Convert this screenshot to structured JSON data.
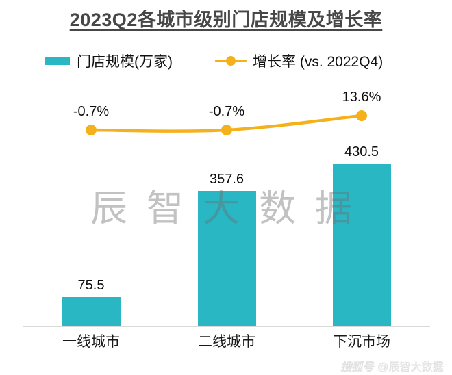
{
  "title": "2023Q2各城市级别门店规模及增长率",
  "legend": {
    "items": [
      {
        "label": "门店规模(万家)",
        "marker": "square",
        "color": "#29b7c4"
      },
      {
        "label": "增长率 (vs. 2022Q4)",
        "marker": "line-dot",
        "color": "#f5b11c"
      }
    ]
  },
  "watermarks": {
    "center": "辰智大数据",
    "footer_platform": "搜狐号",
    "footer_account": "@辰智大数据"
  },
  "chart_data": {
    "type": "bar",
    "subtype": "combo-bar-line",
    "title": "2023Q2各城市级别门店规模及增长率",
    "categories": [
      "一线城市",
      "二线城市",
      "下沉市场"
    ],
    "series": [
      {
        "name": "门店规模(万家)",
        "type": "bar",
        "color": "#29b7c4",
        "values": [
          75.5,
          357.6,
          430.5
        ],
        "data_labels": [
          "75.5",
          "357.6",
          "430.5"
        ]
      },
      {
        "name": "增长率 (vs. 2022Q4)",
        "type": "line",
        "color": "#f5b11c",
        "unit": "%",
        "values": [
          -0.7,
          -0.7,
          13.6
        ],
        "data_labels": [
          "-0.7%",
          "-0.7%",
          "13.6%"
        ]
      }
    ],
    "xlabel": "",
    "ylabel": "",
    "grid": false,
    "y_axis_visible": false,
    "legend_position": "top"
  }
}
